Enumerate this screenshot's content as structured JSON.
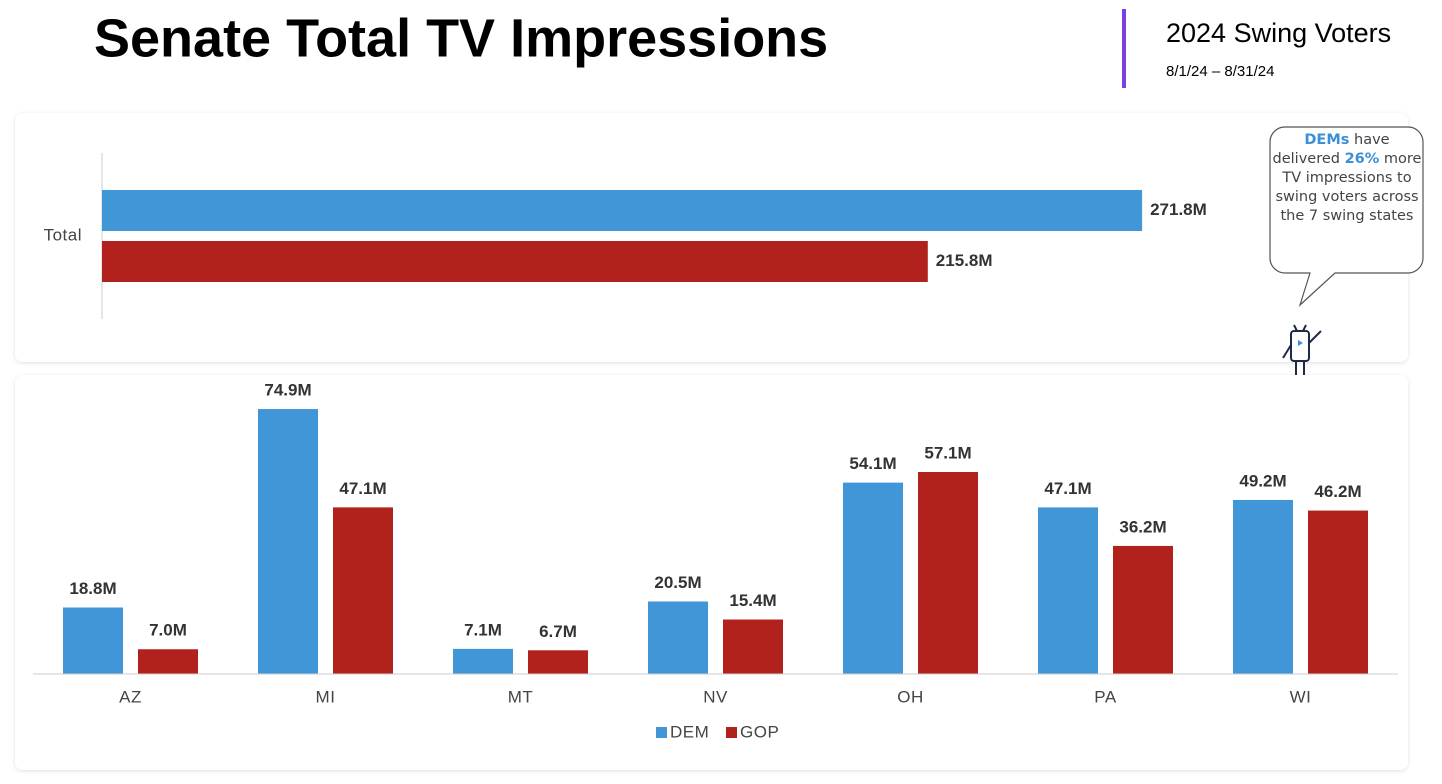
{
  "header": {
    "title": "Senate Total TV Impressions",
    "subtitle": "2024 Swing Voters",
    "date_range": "8/1/24 – 8/31/24"
  },
  "callout": {
    "parts": [
      "DEMs",
      " have delivered ",
      "26%",
      " more TV impressions to swing voters across the 7 swing states"
    ]
  },
  "chart_data": [
    {
      "type": "bar",
      "orientation": "horizontal",
      "categories": [
        "Total"
      ],
      "xlim": [
        0,
        300
      ],
      "series": [
        {
          "color": "#4196d8",
          "values": [
            271.8
          ],
          "value_labels": [
            "271.8M"
          ]
        },
        {
          "color": "#b0221b",
          "values": [
            215.8
          ],
          "value_labels": [
            "215.8M"
          ]
        }
      ]
    },
    {
      "type": "bar",
      "orientation": "vertical",
      "categories": [
        "AZ",
        "MI",
        "MT",
        "NV",
        "OH",
        "PA",
        "WI"
      ],
      "ylim": [
        0,
        80
      ],
      "legend": "bottom",
      "series": [
        {
          "name": "DEM",
          "color": "#4196d8",
          "values": [
            18.8,
            74.9,
            7.1,
            20.5,
            54.1,
            47.1,
            49.2
          ],
          "value_labels": [
            "18.8M",
            "74.9M",
            "7.1M",
            "20.5M",
            "54.1M",
            "47.1M",
            "49.2M"
          ]
        },
        {
          "name": "GOP",
          "color": "#b0221b",
          "values": [
            7.0,
            47.1,
            6.7,
            15.4,
            57.1,
            36.2,
            46.2
          ],
          "value_labels": [
            "7.0M",
            "47.1M",
            "6.7M",
            "15.4M",
            "57.1M",
            "36.2M",
            "46.2M"
          ]
        }
      ]
    }
  ]
}
